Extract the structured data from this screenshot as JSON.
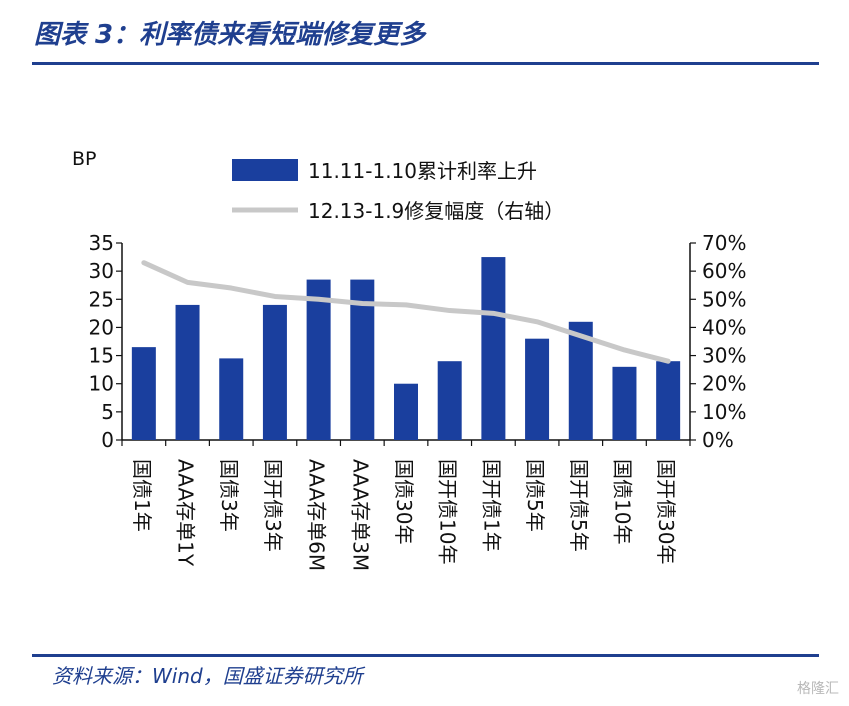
{
  "title": "图表 3：利率债来看短端修复更多",
  "source": "资料来源：Wind，国盛证券研究所",
  "watermark": "格隆汇",
  "colors": {
    "bar": "#1a3f9e",
    "line": "#c8c8c8",
    "accent": "#1f3f8f"
  },
  "chart_data": {
    "type": "bar",
    "categories": [
      "国债1年",
      "AAA存单1Y",
      "国债3年",
      "国开债3年",
      "AAA存单6M",
      "AAA存单3M",
      "国债30年",
      "国开债10年",
      "国开债1年",
      "国债5年",
      "国开债5年",
      "国债10年",
      "国开债30年"
    ],
    "series": [
      {
        "name": "11.11-1.10累计利率上升",
        "type": "bar",
        "axis": "left",
        "values": [
          16.5,
          24,
          14.5,
          24,
          28.5,
          28.5,
          10,
          14,
          32.5,
          18,
          21,
          13,
          14
        ]
      },
      {
        "name": "12.13-1.9修复幅度（右轴）",
        "type": "line",
        "axis": "right",
        "values": [
          63,
          56,
          54,
          51,
          50,
          48.5,
          48,
          46,
          45,
          42,
          37,
          32,
          28
        ]
      }
    ],
    "ylabel": "BP",
    "ylim": [
      0,
      35
    ],
    "y_ticks": [
      "0",
      "5",
      "10",
      "15",
      "20",
      "25",
      "30",
      "35"
    ],
    "y2lim": [
      0,
      70
    ],
    "y2_ticks": [
      "0%",
      "10%",
      "20%",
      "30%",
      "40%",
      "50%",
      "60%",
      "70%"
    ],
    "legend_position": "top",
    "grid": false
  }
}
